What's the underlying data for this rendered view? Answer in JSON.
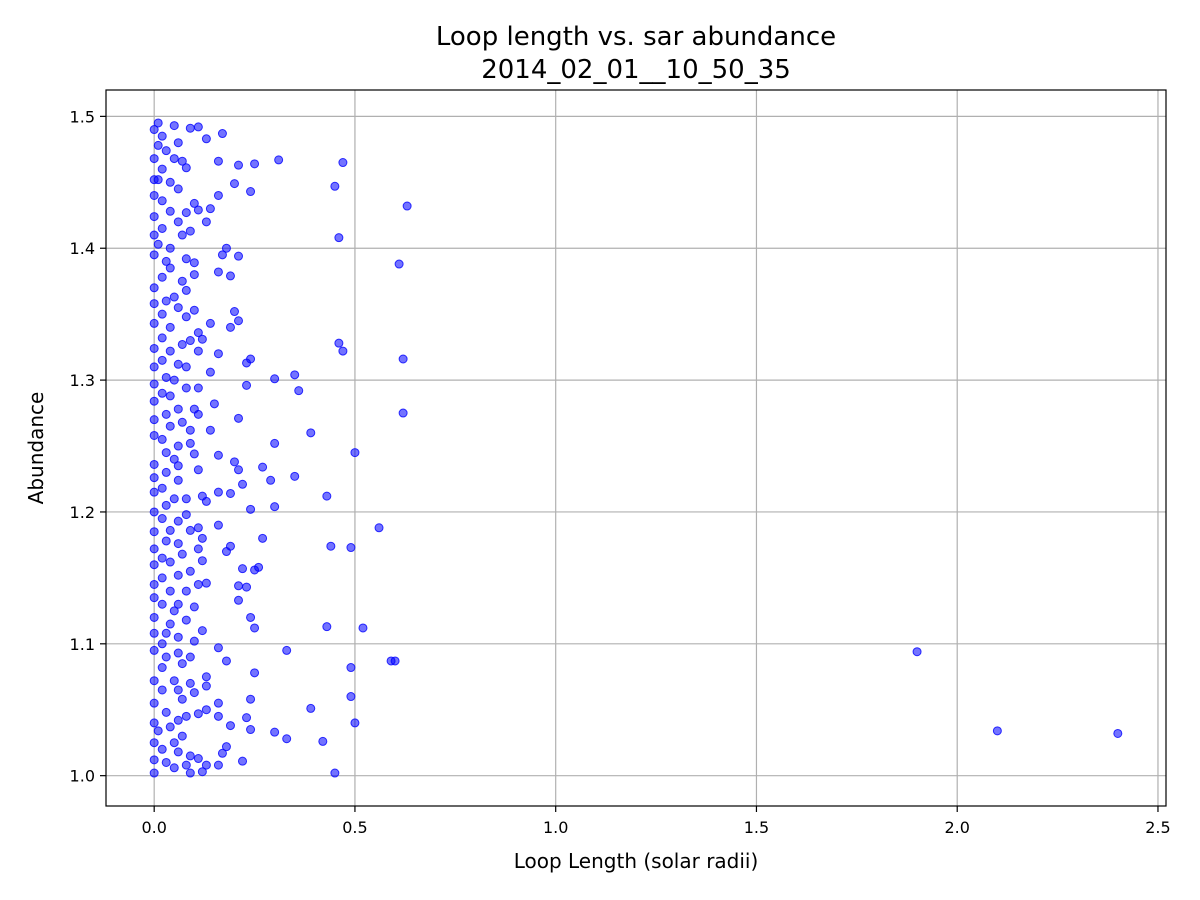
{
  "chart_data": {
    "type": "scatter",
    "title": "Loop length vs. sar abundance",
    "subtitle": "2014_02_01__10_50_35",
    "xlabel": "Loop Length (solar radii)",
    "ylabel": "Abundance",
    "xlim": [
      -0.12,
      2.52
    ],
    "ylim": [
      0.977,
      1.52
    ],
    "xticks": [
      0.0,
      0.5,
      1.0,
      1.5,
      2.0,
      2.5
    ],
    "xtick_labels": [
      "0.0",
      "0.5",
      "1.0",
      "1.5",
      "2.0",
      "2.5"
    ],
    "yticks": [
      1.0,
      1.1,
      1.2,
      1.3,
      1.4,
      1.5
    ],
    "ytick_labels": [
      "1.0",
      "1.1",
      "1.2",
      "1.3",
      "1.4",
      "1.5"
    ],
    "grid": true,
    "marker_color": "#0000ff",
    "marker_alpha": 0.55,
    "points": [
      [
        0.01,
        1.495
      ],
      [
        0.0,
        1.49
      ],
      [
        0.05,
        1.493
      ],
      [
        0.11,
        1.492
      ],
      [
        0.09,
        1.491
      ],
      [
        0.17,
        1.487
      ],
      [
        0.02,
        1.485
      ],
      [
        0.13,
        1.483
      ],
      [
        0.06,
        1.48
      ],
      [
        0.01,
        1.478
      ],
      [
        0.03,
        1.474
      ],
      [
        0.0,
        1.468
      ],
      [
        0.05,
        1.468
      ],
      [
        0.16,
        1.466
      ],
      [
        0.07,
        1.466
      ],
      [
        0.21,
        1.463
      ],
      [
        0.25,
        1.464
      ],
      [
        0.31,
        1.467
      ],
      [
        0.47,
        1.465
      ],
      [
        0.08,
        1.461
      ],
      [
        0.02,
        1.46
      ],
      [
        0.0,
        1.452
      ],
      [
        0.01,
        1.452
      ],
      [
        0.04,
        1.45
      ],
      [
        0.2,
        1.449
      ],
      [
        0.45,
        1.447
      ],
      [
        0.06,
        1.445
      ],
      [
        0.24,
        1.443
      ],
      [
        0.16,
        1.44
      ],
      [
        0.0,
        1.44
      ],
      [
        0.02,
        1.436
      ],
      [
        0.1,
        1.434
      ],
      [
        0.63,
        1.432
      ],
      [
        0.14,
        1.43
      ],
      [
        0.04,
        1.428
      ],
      [
        0.08,
        1.427
      ],
      [
        0.11,
        1.429
      ],
      [
        0.0,
        1.424
      ],
      [
        0.06,
        1.42
      ],
      [
        0.13,
        1.42
      ],
      [
        0.02,
        1.415
      ],
      [
        0.09,
        1.413
      ],
      [
        0.0,
        1.41
      ],
      [
        0.46,
        1.408
      ],
      [
        0.07,
        1.41
      ],
      [
        0.01,
        1.403
      ],
      [
        0.04,
        1.4
      ],
      [
        0.18,
        1.4
      ],
      [
        0.17,
        1.395
      ],
      [
        0.21,
        1.394
      ],
      [
        0.08,
        1.392
      ],
      [
        0.0,
        1.395
      ],
      [
        0.03,
        1.39
      ],
      [
        0.61,
        1.388
      ],
      [
        0.1,
        1.389
      ],
      [
        0.04,
        1.385
      ],
      [
        0.16,
        1.382
      ],
      [
        0.19,
        1.379
      ],
      [
        0.1,
        1.38
      ],
      [
        0.02,
        1.378
      ],
      [
        0.07,
        1.375
      ],
      [
        0.0,
        1.37
      ],
      [
        0.08,
        1.368
      ],
      [
        0.03,
        1.36
      ],
      [
        0.05,
        1.363
      ],
      [
        0.0,
        1.358
      ],
      [
        0.06,
        1.355
      ],
      [
        0.1,
        1.353
      ],
      [
        0.2,
        1.352
      ],
      [
        0.02,
        1.35
      ],
      [
        0.08,
        1.348
      ],
      [
        0.14,
        1.343
      ],
      [
        0.21,
        1.345
      ],
      [
        0.0,
        1.343
      ],
      [
        0.04,
        1.34
      ],
      [
        0.19,
        1.34
      ],
      [
        0.11,
        1.336
      ],
      [
        0.02,
        1.332
      ],
      [
        0.09,
        1.33
      ],
      [
        0.12,
        1.331
      ],
      [
        0.46,
        1.328
      ],
      [
        0.07,
        1.327
      ],
      [
        0.0,
        1.324
      ],
      [
        0.04,
        1.322
      ],
      [
        0.11,
        1.322
      ],
      [
        0.47,
        1.322
      ],
      [
        0.16,
        1.32
      ],
      [
        0.62,
        1.316
      ],
      [
        0.24,
        1.316
      ],
      [
        0.23,
        1.313
      ],
      [
        0.02,
        1.315
      ],
      [
        0.06,
        1.312
      ],
      [
        0.0,
        1.31
      ],
      [
        0.08,
        1.31
      ],
      [
        0.14,
        1.306
      ],
      [
        0.35,
        1.304
      ],
      [
        0.03,
        1.302
      ],
      [
        0.05,
        1.3
      ],
      [
        0.3,
        1.301
      ],
      [
        0.0,
        1.297
      ],
      [
        0.23,
        1.296
      ],
      [
        0.11,
        1.294
      ],
      [
        0.08,
        1.294
      ],
      [
        0.36,
        1.292
      ],
      [
        0.02,
        1.29
      ],
      [
        0.04,
        1.288
      ],
      [
        0.0,
        1.284
      ],
      [
        0.15,
        1.282
      ],
      [
        0.06,
        1.278
      ],
      [
        0.1,
        1.278
      ],
      [
        0.11,
        1.274
      ],
      [
        0.62,
        1.275
      ],
      [
        0.03,
        1.274
      ],
      [
        0.0,
        1.27
      ],
      [
        0.21,
        1.271
      ],
      [
        0.07,
        1.268
      ],
      [
        0.04,
        1.265
      ],
      [
        0.09,
        1.262
      ],
      [
        0.14,
        1.262
      ],
      [
        0.39,
        1.26
      ],
      [
        0.0,
        1.258
      ],
      [
        0.02,
        1.255
      ],
      [
        0.06,
        1.25
      ],
      [
        0.09,
        1.252
      ],
      [
        0.3,
        1.252
      ],
      [
        0.5,
        1.245
      ],
      [
        0.03,
        1.245
      ],
      [
        0.16,
        1.243
      ],
      [
        0.05,
        1.24
      ],
      [
        0.1,
        1.244
      ],
      [
        0.2,
        1.238
      ],
      [
        0.0,
        1.236
      ],
      [
        0.06,
        1.235
      ],
      [
        0.27,
        1.234
      ],
      [
        0.21,
        1.232
      ],
      [
        0.11,
        1.232
      ],
      [
        0.03,
        1.23
      ],
      [
        0.35,
        1.227
      ],
      [
        0.0,
        1.226
      ],
      [
        0.06,
        1.224
      ],
      [
        0.29,
        1.224
      ],
      [
        0.22,
        1.221
      ],
      [
        0.02,
        1.218
      ],
      [
        0.0,
        1.215
      ],
      [
        0.16,
        1.215
      ],
      [
        0.19,
        1.214
      ],
      [
        0.12,
        1.212
      ],
      [
        0.43,
        1.212
      ],
      [
        0.05,
        1.21
      ],
      [
        0.08,
        1.21
      ],
      [
        0.13,
        1.208
      ],
      [
        0.03,
        1.205
      ],
      [
        0.3,
        1.204
      ],
      [
        0.24,
        1.202
      ],
      [
        0.0,
        1.2
      ],
      [
        0.08,
        1.198
      ],
      [
        0.02,
        1.195
      ],
      [
        0.06,
        1.193
      ],
      [
        0.16,
        1.19
      ],
      [
        0.56,
        1.188
      ],
      [
        0.11,
        1.188
      ],
      [
        0.0,
        1.185
      ],
      [
        0.04,
        1.186
      ],
      [
        0.09,
        1.186
      ],
      [
        0.12,
        1.18
      ],
      [
        0.27,
        1.18
      ],
      [
        0.03,
        1.178
      ],
      [
        0.06,
        1.176
      ],
      [
        0.44,
        1.174
      ],
      [
        0.49,
        1.173
      ],
      [
        0.11,
        1.172
      ],
      [
        0.19,
        1.174
      ],
      [
        0.0,
        1.172
      ],
      [
        0.18,
        1.17
      ],
      [
        0.07,
        1.168
      ],
      [
        0.02,
        1.165
      ],
      [
        0.12,
        1.163
      ],
      [
        0.04,
        1.162
      ],
      [
        0.0,
        1.16
      ],
      [
        0.26,
        1.158
      ],
      [
        0.22,
        1.157
      ],
      [
        0.25,
        1.156
      ],
      [
        0.09,
        1.155
      ],
      [
        0.06,
        1.152
      ],
      [
        0.02,
        1.15
      ],
      [
        0.13,
        1.146
      ],
      [
        0.0,
        1.145
      ],
      [
        0.11,
        1.145
      ],
      [
        0.21,
        1.144
      ],
      [
        0.23,
        1.143
      ],
      [
        0.08,
        1.14
      ],
      [
        0.04,
        1.14
      ],
      [
        0.0,
        1.135
      ],
      [
        0.21,
        1.133
      ],
      [
        0.06,
        1.13
      ],
      [
        0.02,
        1.13
      ],
      [
        0.1,
        1.128
      ],
      [
        0.05,
        1.125
      ],
      [
        0.0,
        1.12
      ],
      [
        0.24,
        1.12
      ],
      [
        0.08,
        1.118
      ],
      [
        0.04,
        1.115
      ],
      [
        0.43,
        1.113
      ],
      [
        0.52,
        1.112
      ],
      [
        0.25,
        1.112
      ],
      [
        0.12,
        1.11
      ],
      [
        0.0,
        1.108
      ],
      [
        0.03,
        1.108
      ],
      [
        0.06,
        1.105
      ],
      [
        0.1,
        1.102
      ],
      [
        0.02,
        1.1
      ],
      [
        0.33,
        1.095
      ],
      [
        1.9,
        1.094
      ],
      [
        0.16,
        1.097
      ],
      [
        0.0,
        1.095
      ],
      [
        0.06,
        1.093
      ],
      [
        0.09,
        1.09
      ],
      [
        0.03,
        1.09
      ],
      [
        0.18,
        1.087
      ],
      [
        0.6,
        1.087
      ],
      [
        0.59,
        1.087
      ],
      [
        0.07,
        1.085
      ],
      [
        0.49,
        1.082
      ],
      [
        0.02,
        1.082
      ],
      [
        0.25,
        1.078
      ],
      [
        0.13,
        1.075
      ],
      [
        0.0,
        1.072
      ],
      [
        0.05,
        1.072
      ],
      [
        0.09,
        1.07
      ],
      [
        0.13,
        1.068
      ],
      [
        0.02,
        1.065
      ],
      [
        0.06,
        1.065
      ],
      [
        0.1,
        1.063
      ],
      [
        0.49,
        1.06
      ],
      [
        0.07,
        1.058
      ],
      [
        0.24,
        1.058
      ],
      [
        0.0,
        1.055
      ],
      [
        0.16,
        1.055
      ],
      [
        0.39,
        1.051
      ],
      [
        0.13,
        1.05
      ],
      [
        0.03,
        1.048
      ],
      [
        0.08,
        1.045
      ],
      [
        0.11,
        1.047
      ],
      [
        0.23,
        1.044
      ],
      [
        0.16,
        1.045
      ],
      [
        0.06,
        1.042
      ],
      [
        0.0,
        1.04
      ],
      [
        0.5,
        1.04
      ],
      [
        0.19,
        1.038
      ],
      [
        0.04,
        1.037
      ],
      [
        0.01,
        1.034
      ],
      [
        2.1,
        1.034
      ],
      [
        0.24,
        1.035
      ],
      [
        0.3,
        1.033
      ],
      [
        2.4,
        1.032
      ],
      [
        0.07,
        1.03
      ],
      [
        0.33,
        1.028
      ],
      [
        0.42,
        1.026
      ],
      [
        0.0,
        1.025
      ],
      [
        0.05,
        1.025
      ],
      [
        0.18,
        1.022
      ],
      [
        0.02,
        1.02
      ],
      [
        0.06,
        1.018
      ],
      [
        0.17,
        1.017
      ],
      [
        0.09,
        1.015
      ],
      [
        0.11,
        1.013
      ],
      [
        0.0,
        1.012
      ],
      [
        0.03,
        1.01
      ],
      [
        0.22,
        1.011
      ],
      [
        0.08,
        1.008
      ],
      [
        0.13,
        1.008
      ],
      [
        0.16,
        1.008
      ],
      [
        0.05,
        1.006
      ],
      [
        0.12,
        1.003
      ],
      [
        0.0,
        1.002
      ],
      [
        0.45,
        1.002
      ],
      [
        0.09,
        1.002
      ]
    ]
  }
}
